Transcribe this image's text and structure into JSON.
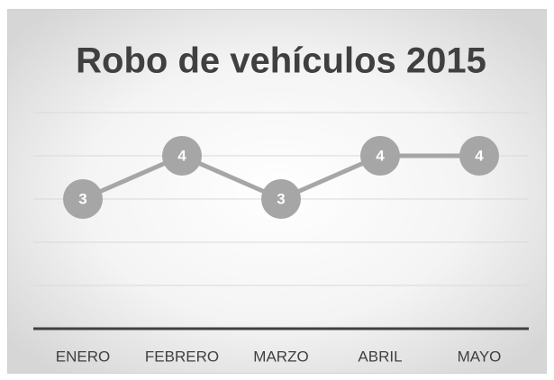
{
  "chart_data": {
    "type": "line",
    "title": "Robo de vehículos 2015",
    "categories": [
      "ENERO",
      "FEBRERO",
      "MARZO",
      "ABRIL",
      "MAYO"
    ],
    "values": [
      3,
      4,
      3,
      4,
      4
    ],
    "color": "#a6a6a6",
    "ylim": [
      0,
      5
    ],
    "yticks": [
      0,
      1,
      2,
      3,
      4,
      5
    ],
    "grid": true
  }
}
